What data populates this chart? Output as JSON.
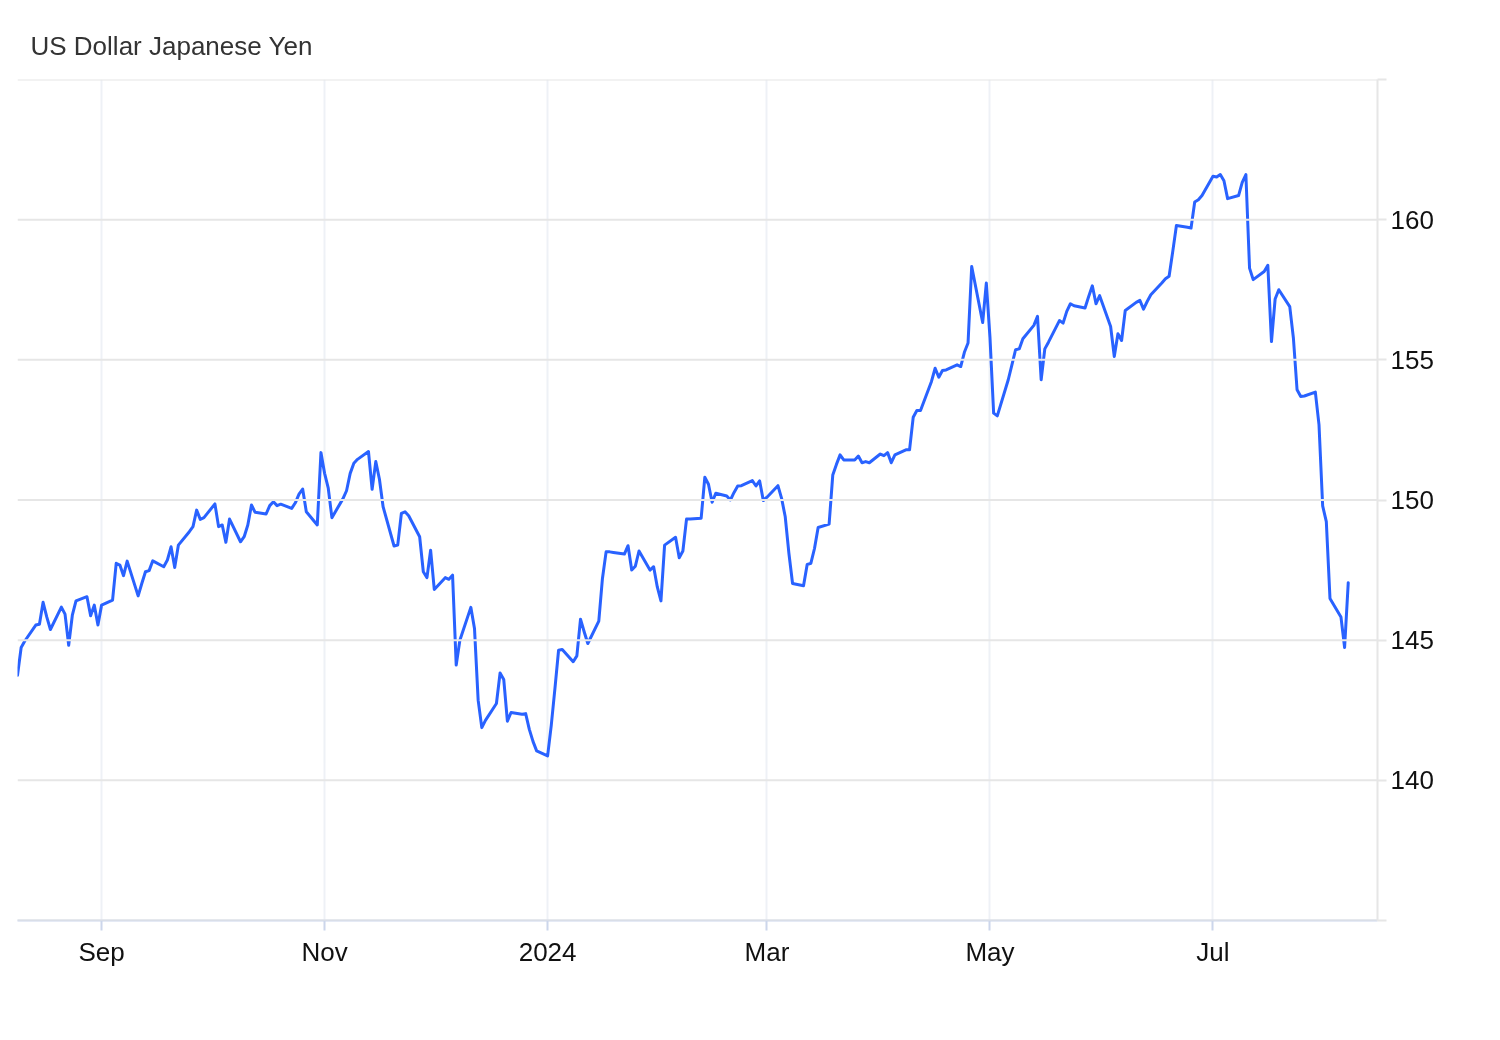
{
  "chart_data": {
    "type": "line",
    "title": "US Dollar Japanese Yen",
    "color": "#2962ff",
    "x": [
      "2023-08-09",
      "2023-08-10",
      "2023-08-11",
      "2023-08-14",
      "2023-08-15",
      "2023-08-16",
      "2023-08-17",
      "2023-08-18",
      "2023-08-21",
      "2023-08-22",
      "2023-08-23",
      "2023-08-24",
      "2023-08-25",
      "2023-08-28",
      "2023-08-29",
      "2023-08-30",
      "2023-08-31",
      "2023-09-01",
      "2023-09-04",
      "2023-09-05",
      "2023-09-06",
      "2023-09-07",
      "2023-09-08",
      "2023-09-11",
      "2023-09-12",
      "2023-09-13",
      "2023-09-14",
      "2023-09-15",
      "2023-09-18",
      "2023-09-19",
      "2023-09-20",
      "2023-09-21",
      "2023-09-22",
      "2023-09-25",
      "2023-09-26",
      "2023-09-27",
      "2023-09-28",
      "2023-09-29",
      "2023-10-02",
      "2023-10-03",
      "2023-10-04",
      "2023-10-05",
      "2023-10-06",
      "2023-10-09",
      "2023-10-10",
      "2023-10-11",
      "2023-10-12",
      "2023-10-13",
      "2023-10-16",
      "2023-10-17",
      "2023-10-18",
      "2023-10-19",
      "2023-10-20",
      "2023-10-23",
      "2023-10-24",
      "2023-10-25",
      "2023-10-26",
      "2023-10-27",
      "2023-10-30",
      "2023-10-31",
      "2023-11-01",
      "2023-11-02",
      "2023-11-03",
      "2023-11-06",
      "2023-11-07",
      "2023-11-08",
      "2023-11-09",
      "2023-11-10",
      "2023-11-13",
      "2023-11-14",
      "2023-11-15",
      "2023-11-16",
      "2023-11-17",
      "2023-11-20",
      "2023-11-21",
      "2023-11-22",
      "2023-11-23",
      "2023-11-24",
      "2023-11-27",
      "2023-11-28",
      "2023-11-29",
      "2023-11-30",
      "2023-12-01",
      "2023-12-04",
      "2023-12-05",
      "2023-12-06",
      "2023-12-07",
      "2023-12-08",
      "2023-12-11",
      "2023-12-12",
      "2023-12-13",
      "2023-12-14",
      "2023-12-15",
      "2023-12-18",
      "2023-12-19",
      "2023-12-20",
      "2023-12-21",
      "2023-12-22",
      "2023-12-25",
      "2023-12-26",
      "2023-12-27",
      "2023-12-28",
      "2023-12-29",
      "2024-01-01",
      "2024-01-02",
      "2024-01-03",
      "2024-01-04",
      "2024-01-05",
      "2024-01-08",
      "2024-01-09",
      "2024-01-10",
      "2024-01-11",
      "2024-01-12",
      "2024-01-15",
      "2024-01-16",
      "2024-01-17",
      "2024-01-18",
      "2024-01-19",
      "2024-01-22",
      "2024-01-23",
      "2024-01-24",
      "2024-01-25",
      "2024-01-26",
      "2024-01-29",
      "2024-01-30",
      "2024-01-31",
      "2024-02-01",
      "2024-02-02",
      "2024-02-05",
      "2024-02-06",
      "2024-02-07",
      "2024-02-08",
      "2024-02-09",
      "2024-02-12",
      "2024-02-13",
      "2024-02-14",
      "2024-02-15",
      "2024-02-16",
      "2024-02-19",
      "2024-02-20",
      "2024-02-21",
      "2024-02-22",
      "2024-02-23",
      "2024-02-26",
      "2024-02-27",
      "2024-02-28",
      "2024-02-29",
      "2024-03-01",
      "2024-03-04",
      "2024-03-05",
      "2024-03-06",
      "2024-03-07",
      "2024-03-08",
      "2024-03-11",
      "2024-03-12",
      "2024-03-13",
      "2024-03-14",
      "2024-03-15",
      "2024-03-18",
      "2024-03-19",
      "2024-03-20",
      "2024-03-21",
      "2024-03-22",
      "2024-03-25",
      "2024-03-26",
      "2024-03-27",
      "2024-03-28",
      "2024-03-29",
      "2024-04-01",
      "2024-04-02",
      "2024-04-03",
      "2024-04-04",
      "2024-04-05",
      "2024-04-08",
      "2024-04-09",
      "2024-04-10",
      "2024-04-11",
      "2024-04-12",
      "2024-04-15",
      "2024-04-16",
      "2024-04-17",
      "2024-04-18",
      "2024-04-19",
      "2024-04-22",
      "2024-04-23",
      "2024-04-24",
      "2024-04-25",
      "2024-04-26",
      "2024-04-29",
      "2024-04-30",
      "2024-05-01",
      "2024-05-02",
      "2024-05-03",
      "2024-05-06",
      "2024-05-07",
      "2024-05-08",
      "2024-05-09",
      "2024-05-10",
      "2024-05-13",
      "2024-05-14",
      "2024-05-15",
      "2024-05-16",
      "2024-05-17",
      "2024-05-20",
      "2024-05-21",
      "2024-05-22",
      "2024-05-23",
      "2024-05-24",
      "2024-05-27",
      "2024-05-28",
      "2024-05-29",
      "2024-05-30",
      "2024-05-31",
      "2024-06-03",
      "2024-06-04",
      "2024-06-05",
      "2024-06-06",
      "2024-06-07",
      "2024-06-10",
      "2024-06-11",
      "2024-06-12",
      "2024-06-13",
      "2024-06-14",
      "2024-06-17",
      "2024-06-18",
      "2024-06-19",
      "2024-06-20",
      "2024-06-21",
      "2024-06-24",
      "2024-06-25",
      "2024-06-26",
      "2024-06-27",
      "2024-06-28",
      "2024-07-01",
      "2024-07-02",
      "2024-07-03",
      "2024-07-04",
      "2024-07-05",
      "2024-07-08",
      "2024-07-09",
      "2024-07-10",
      "2024-07-11",
      "2024-07-12",
      "2024-07-15",
      "2024-07-16",
      "2024-07-17",
      "2024-07-18",
      "2024-07-19",
      "2024-07-22",
      "2024-07-23",
      "2024-07-24",
      "2024-07-25",
      "2024-07-26",
      "2024-07-29",
      "2024-07-30",
      "2024-07-31",
      "2024-08-01",
      "2024-08-02",
      "2024-08-05",
      "2024-08-06",
      "2024-08-07"
    ],
    "values": [
      143.75,
      144.74,
      144.97,
      145.54,
      145.57,
      146.35,
      145.83,
      145.38,
      146.18,
      145.93,
      144.82,
      145.89,
      146.4,
      146.55,
      145.87,
      146.25,
      145.54,
      146.25,
      146.43,
      147.74,
      147.68,
      147.3,
      147.82,
      146.58,
      147.02,
      147.44,
      147.48,
      147.83,
      147.62,
      147.86,
      148.33,
      147.59,
      148.39,
      148.87,
      149.05,
      149.64,
      149.31,
      149.37,
      149.86,
      149.05,
      149.11,
      148.49,
      149.32,
      148.51,
      148.69,
      149.11,
      149.82,
      149.56,
      149.5,
      149.8,
      149.94,
      149.8,
      149.85,
      149.7,
      149.9,
      150.21,
      150.39,
      149.58,
      149.11,
      151.69,
      150.95,
      150.42,
      149.37,
      150.04,
      150.33,
      150.95,
      151.31,
      151.45,
      151.73,
      150.38,
      151.37,
      150.74,
      149.76,
      148.36,
      148.39,
      149.52,
      149.58,
      149.44,
      148.69,
      147.44,
      147.23,
      148.21,
      146.81,
      147.23,
      147.17,
      147.32,
      144.11,
      145.0,
      146.17,
      145.42,
      142.86,
      141.88,
      142.14,
      142.74,
      143.83,
      143.6,
      142.11,
      142.42,
      142.36,
      142.38,
      141.82,
      141.39,
      141.05,
      140.87,
      141.96,
      143.27,
      144.64,
      144.67,
      144.23,
      144.44,
      145.75,
      145.3,
      144.88,
      145.68,
      147.2,
      148.15,
      148.15,
      148.13,
      148.07,
      148.37,
      147.5,
      147.64,
      148.18,
      147.5,
      147.62,
      146.9,
      146.4,
      148.39,
      148.67,
      147.94,
      148.18,
      149.32,
      149.32,
      149.35,
      150.81,
      150.56,
      149.92,
      150.24,
      150.14,
      150.0,
      150.27,
      150.5,
      150.51,
      150.69,
      150.5,
      150.68,
      149.98,
      150.1,
      150.51,
      150.06,
      149.4,
      148.1,
      147.02,
      146.94,
      147.7,
      147.74,
      148.27,
      149.02,
      149.14,
      150.89,
      151.27,
      151.61,
      151.43,
      151.43,
      151.57,
      151.33,
      151.37,
      151.33,
      151.64,
      151.58,
      151.69,
      151.33,
      151.61,
      151.79,
      151.79,
      152.95,
      153.19,
      153.19,
      154.23,
      154.7,
      154.38,
      154.62,
      154.64,
      154.82,
      154.76,
      155.27,
      155.6,
      158.33,
      156.33,
      157.74,
      155.8,
      153.1,
      153.0,
      154.29,
      154.82,
      155.36,
      155.39,
      155.75,
      156.23,
      156.55,
      154.29,
      155.39,
      155.63,
      156.4,
      156.31,
      156.73,
      157.0,
      156.93,
      156.85,
      157.26,
      157.64,
      157.0,
      157.29,
      156.19,
      155.12,
      155.93,
      155.69,
      156.76,
      157.05,
      157.12,
      156.81,
      157.08,
      157.32,
      157.74,
      157.89,
      157.98,
      158.87,
      159.79,
      159.73,
      159.7,
      160.63,
      160.71,
      160.86,
      161.55,
      161.52,
      161.61,
      161.39,
      160.75,
      160.86,
      161.33,
      161.61,
      158.27,
      157.86,
      158.15,
      158.37,
      155.65,
      157.17,
      157.5,
      156.9,
      155.77,
      153.93,
      153.69,
      153.71,
      153.85,
      152.68,
      149.79,
      149.23,
      146.49,
      145.83,
      144.74,
      147.05
    ],
    "xlim": [
      "2023-08-09",
      "2024-08-15"
    ],
    "ylim": [
      135,
      165
    ],
    "xticks": [
      {
        "value": "2023-09-01",
        "label": "Sep"
      },
      {
        "value": "2023-11-01",
        "label": "Nov"
      },
      {
        "value": "2024-01-01",
        "label": "2024"
      },
      {
        "value": "2024-03-01",
        "label": "Mar"
      },
      {
        "value": "2024-05-01",
        "label": "May"
      },
      {
        "value": "2024-07-01",
        "label": "Jul"
      }
    ],
    "yticks": [
      {
        "value": 135,
        "label": null
      },
      140,
      145,
      150,
      155,
      160,
      {
        "value": 165,
        "label": null
      }
    ],
    "grid": true
  }
}
